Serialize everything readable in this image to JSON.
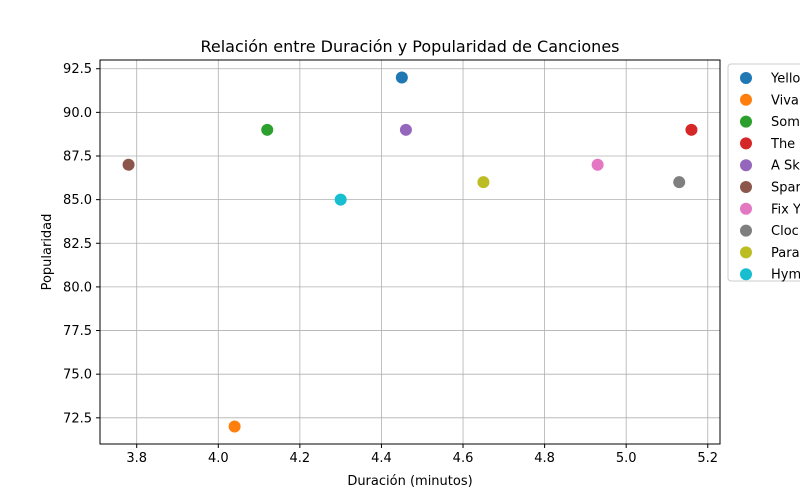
{
  "chart_data": {
    "type": "scatter",
    "title": "Relación entre Duración y Popularidad de Canciones",
    "xlabel": "Duración (minutos)",
    "ylabel": "Popularidad",
    "xlim": [
      3.71,
      5.23
    ],
    "ylim": [
      71.0,
      93.0
    ],
    "xticks": [
      "3.8",
      "4.0",
      "4.2",
      "4.4",
      "4.6",
      "4.8",
      "5.0",
      "5.2"
    ],
    "yticks": [
      "72.5",
      "75.0",
      "77.5",
      "80.0",
      "82.5",
      "85.0",
      "87.5",
      "90.0",
      "92.5"
    ],
    "grid": true,
    "legend_position": "outside-right",
    "series": [
      {
        "name": "Yello",
        "x": 4.45,
        "y": 92,
        "color": "#1f77b4"
      },
      {
        "name": "Viva",
        "x": 4.04,
        "y": 72,
        "color": "#ff7f0e"
      },
      {
        "name": "Som",
        "x": 4.12,
        "y": 89,
        "color": "#2ca02c"
      },
      {
        "name": "The",
        "x": 5.16,
        "y": 89,
        "color": "#d62728"
      },
      {
        "name": "A Sk",
        "x": 4.46,
        "y": 89,
        "color": "#9467bd"
      },
      {
        "name": "Spar",
        "x": 3.78,
        "y": 87,
        "color": "#8c564b"
      },
      {
        "name": "Fix Y",
        "x": 4.93,
        "y": 87,
        "color": "#e377c2"
      },
      {
        "name": "Cloc",
        "x": 5.13,
        "y": 86,
        "color": "#7f7f7f"
      },
      {
        "name": "Para",
        "x": 4.65,
        "y": 86,
        "color": "#bcbd22"
      },
      {
        "name": "Hym",
        "x": 4.3,
        "y": 85,
        "color": "#17becf"
      }
    ]
  }
}
